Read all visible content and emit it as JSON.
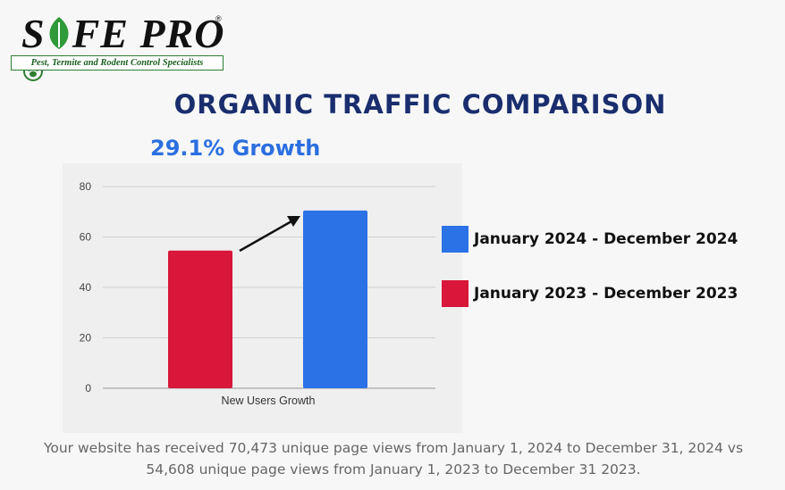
{
  "logo": {
    "wordmark_pre": "S",
    "wordmark_post": "FE PRO",
    "registered": "®",
    "tagline": "Pest, Termite and Rodent Control Specialists"
  },
  "title": "ORGANIC TRAFFIC COMPARISON",
  "growth_label": "29.1% Growth",
  "colors": {
    "series_2024": "#2b72e6",
    "series_2023": "#d8173a",
    "title": "#1a2e6e",
    "accent_green": "#2e7d32"
  },
  "chart_data": {
    "type": "bar",
    "categories": [
      "New Users Growth"
    ],
    "series": [
      {
        "name": "January 2023 - December 2023",
        "values": [
          54.6
        ]
      },
      {
        "name": "January 2024 - December 2024",
        "values": [
          70.5
        ]
      }
    ],
    "title": "",
    "xlabel": "",
    "ylabel": "",
    "ylim": [
      0,
      80
    ],
    "yticks": [
      "0",
      "20",
      "40",
      "60",
      "80"
    ],
    "grid": true,
    "legend_position": "right"
  },
  "legend": [
    {
      "label": "January 2024 - December 2024",
      "color": "#2b72e6"
    },
    {
      "label": "January 2023 - December 2023",
      "color": "#d8173a"
    }
  ],
  "footer": {
    "line1": "Your website has received 70,473 unique page views from January 1, 2024 to December 31, 2024 vs",
    "line2": "54,608 unique page views from January 1, 2023 to December 31 2023."
  }
}
